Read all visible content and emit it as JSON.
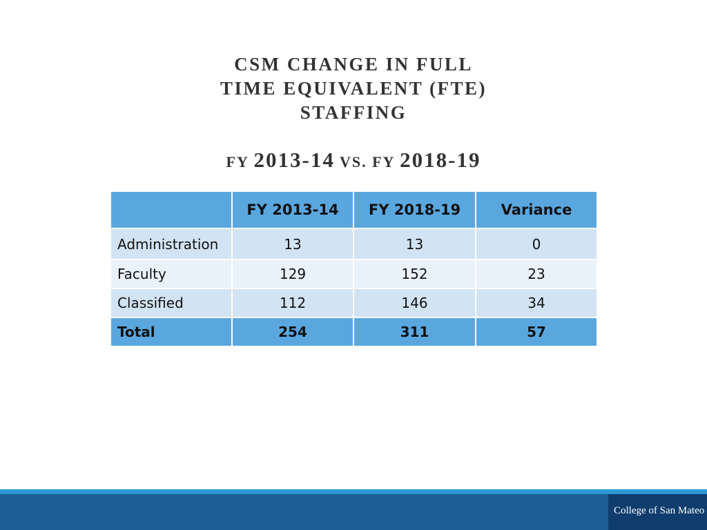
{
  "title": {
    "lines": [
      "CSM CHANGE IN  FULL",
      "TIME EQUIVALENT (FTE)",
      "STAFFING"
    ],
    "subtitle": {
      "prefix": "FY ",
      "year1": "2013-14",
      "vs": " VS. FY ",
      "year2": "2018-19"
    }
  },
  "table": {
    "headers": [
      "",
      "FY 2013-14",
      "FY 2018-19",
      "Variance"
    ],
    "rows": [
      {
        "label": "Administration",
        "fy2013": "13",
        "fy2018": "13",
        "variance": "0"
      },
      {
        "label": "Faculty",
        "fy2013": "129",
        "fy2018": "152",
        "variance": "23"
      },
      {
        "label": "Classified",
        "fy2013": "112",
        "fy2018": "146",
        "variance": "34"
      }
    ],
    "total": {
      "label": "Total",
      "fy2013": "254",
      "fy2018": "311",
      "variance": "57"
    }
  },
  "footer": {
    "logo_text": "College of San Mateo"
  },
  "colors": {
    "header_fill": "#5aa7e0",
    "row_dark": "#d2e3f3",
    "row_light": "#e9f1fa",
    "footer": "#1d5f95",
    "footer_stripe": "#2b98d6",
    "logo_box": "#0f3d6d"
  }
}
